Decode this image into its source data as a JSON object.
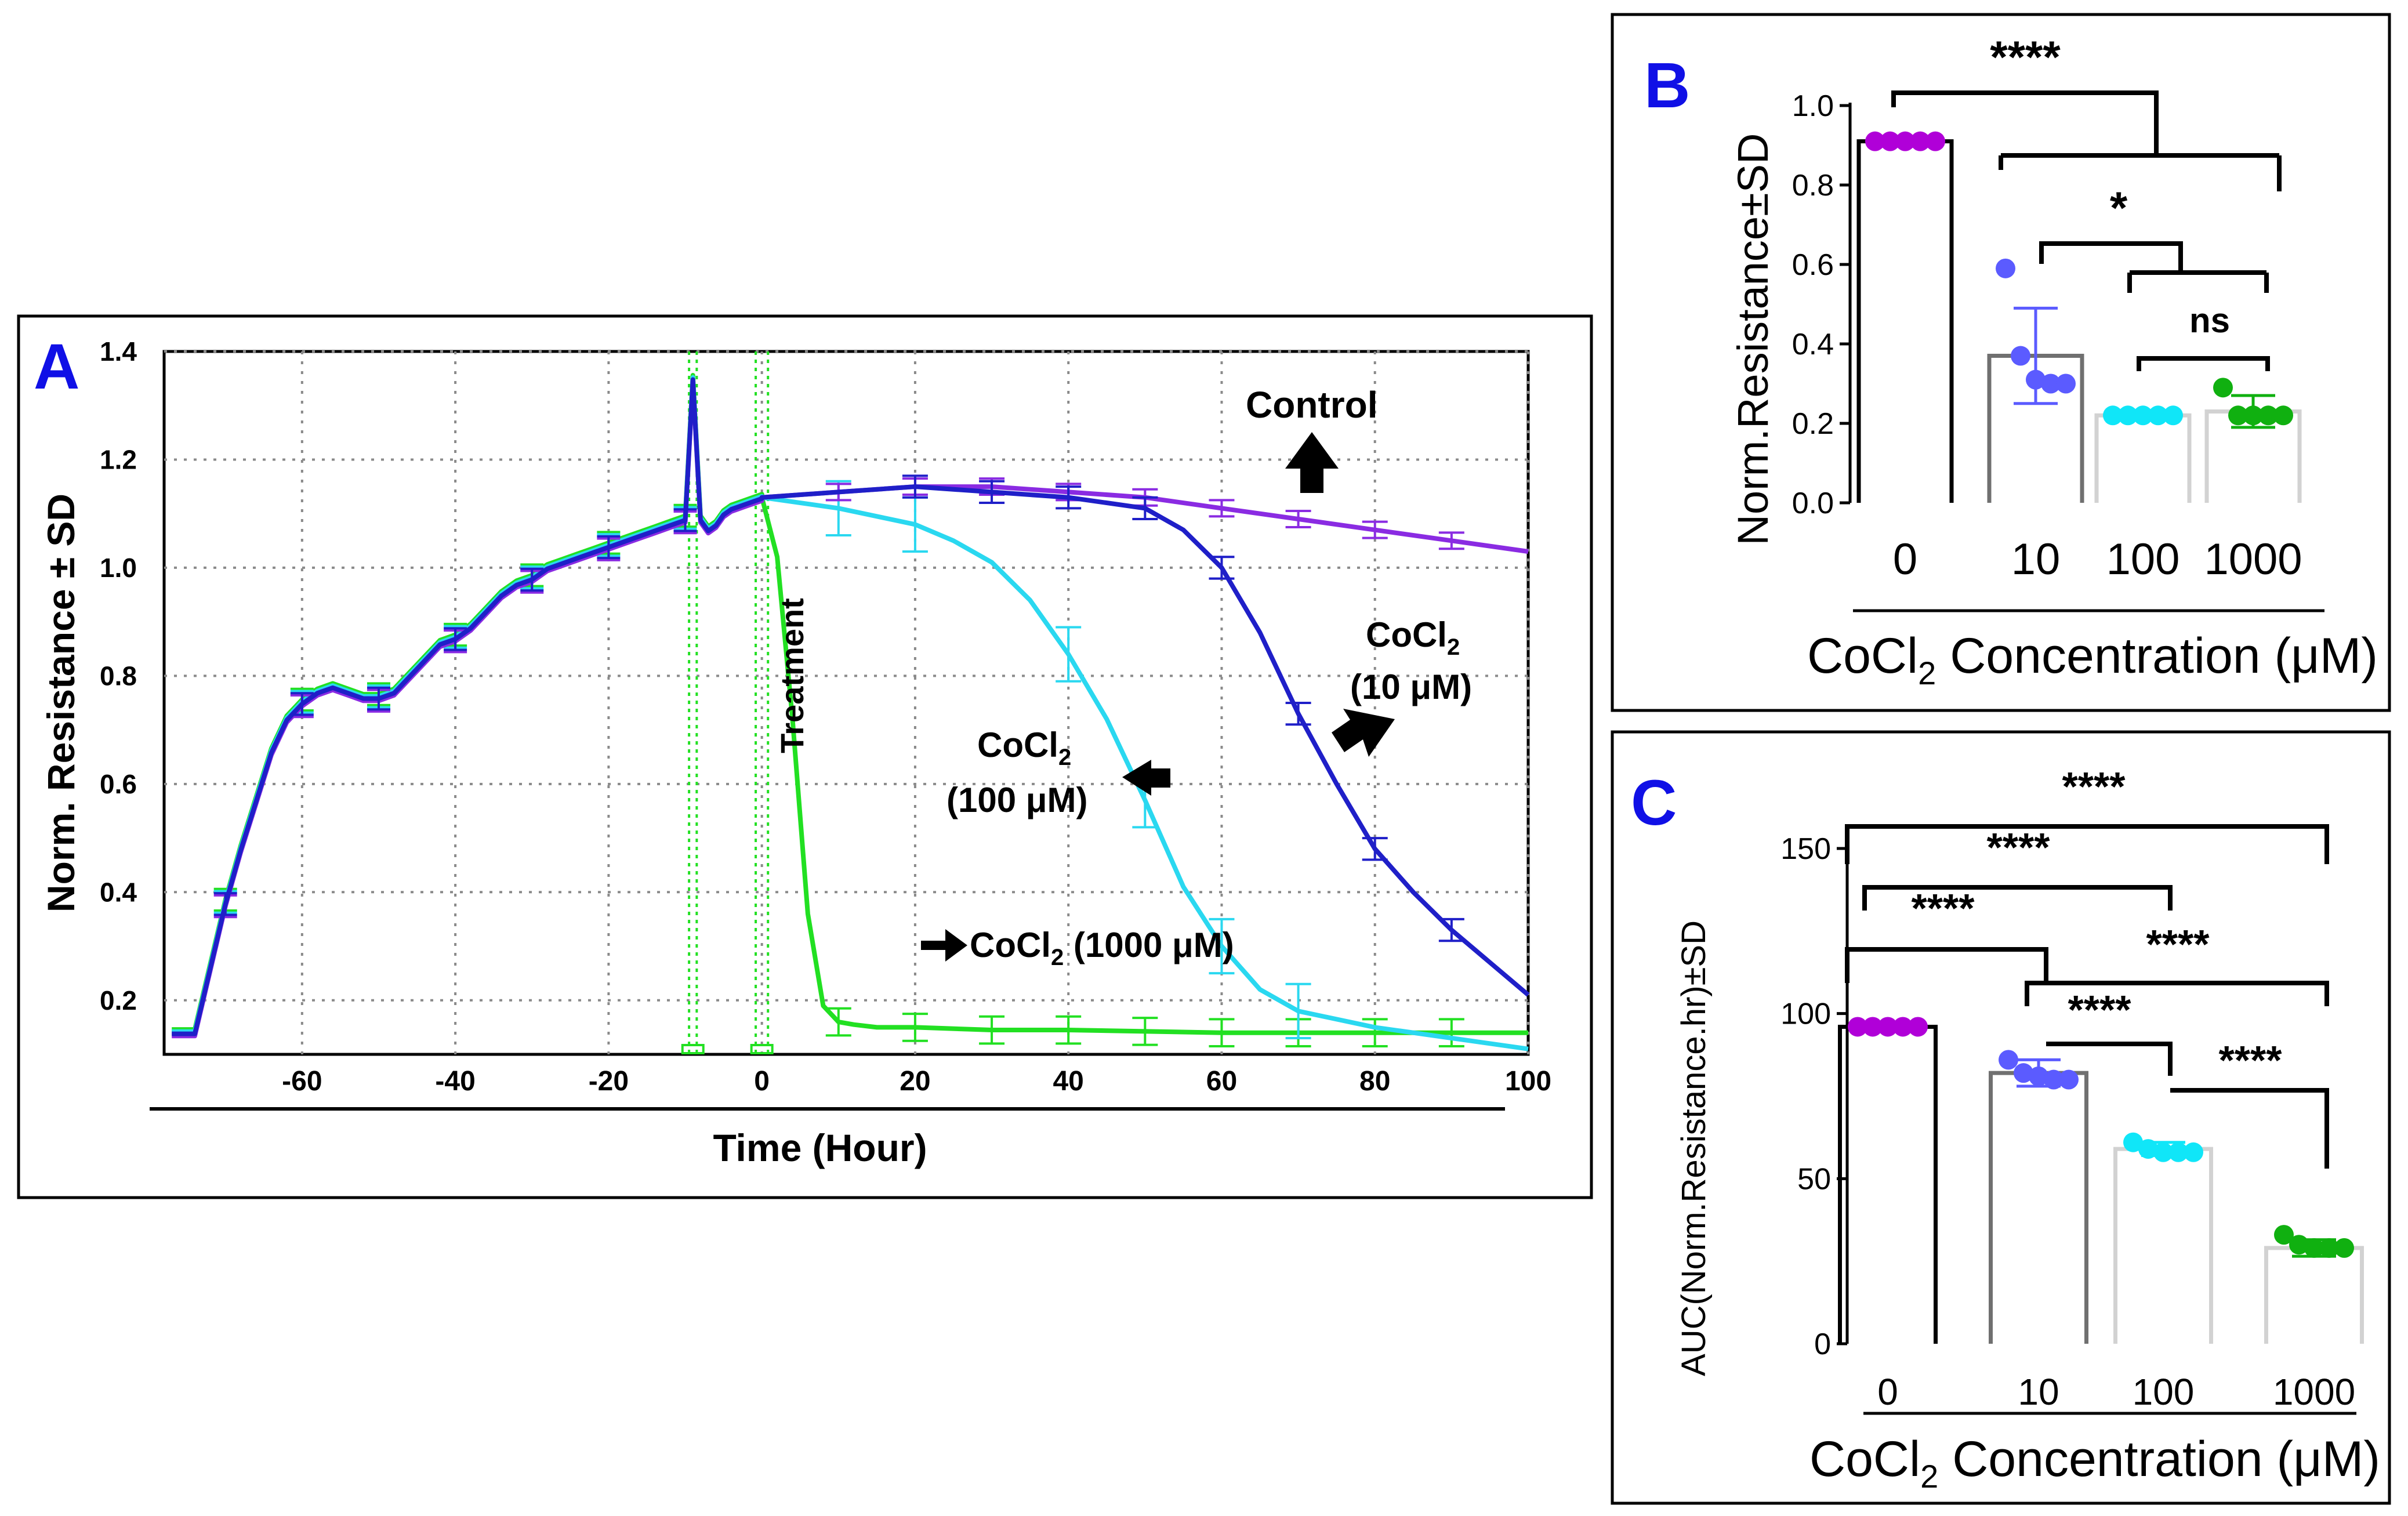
{
  "colors": {
    "control": "#8a2be2",
    "cocl2_10": "#1f1fc8",
    "cocl2_100": "#2ad8f0",
    "cocl2_1000": "#22e022",
    "panel_letter": "#1010e6",
    "bar_0": "#000000",
    "bar_10": "#707070",
    "bar_100": "#d2d2d2",
    "bar_1000": "#d2d2d2",
    "dot_0": "#b000d8",
    "dot_10": "#5b5bff",
    "dot_100": "#10e6f8",
    "dot_1000": "#10b010"
  },
  "chart_data": [
    {
      "panel": "A",
      "type": "line",
      "xlabel": "Time (Hour)",
      "ylabel": "Norm. Resistance ± SD",
      "xlim": [
        -78,
        100
      ],
      "ylim": [
        0.1,
        1.4
      ],
      "xticks": [
        -60,
        -40,
        -20,
        0,
        20,
        40,
        60,
        80,
        100
      ],
      "yticks": [
        0.2,
        0.4,
        0.6,
        0.8,
        1.0,
        1.2,
        1.4
      ],
      "ytick_labels": [
        "0.2",
        "0.4",
        "0.6",
        "0.8",
        "1.0",
        "1.2",
        "1.4"
      ],
      "xtick_labels": [
        "-60",
        "-40",
        "-20",
        "0",
        "20",
        "40",
        "60",
        "80",
        "100"
      ],
      "grid": true,
      "treatment_label": "Treatment",
      "annotations": {
        "control": "Control",
        "c10_line1": "CoCl",
        "c10_sub": "2",
        "c10_line2": "(10 μM)",
        "c100_line1": "CoCl",
        "c100_sub": "2",
        "c100_line2": "(100 μM)",
        "c1000_main": "CoCl",
        "c1000_sub": "2",
        "c1000_rest": " (1000 μM)"
      },
      "common_pre": {
        "x": [
          -77,
          -74,
          -72,
          -70,
          -68,
          -66,
          -64,
          -62,
          -60,
          -58,
          -56,
          -54,
          -52,
          -50,
          -48,
          -46,
          -44,
          -42,
          -40,
          -38,
          -36,
          -34,
          -32,
          -30,
          -28,
          -26,
          -24,
          -22,
          -20,
          -18,
          -16,
          -14,
          -12,
          -10,
          -9,
          -8,
          -7,
          -6,
          -5,
          -4,
          -2,
          0
        ],
        "y": [
          0.14,
          0.14,
          0.26,
          0.38,
          0.48,
          0.57,
          0.66,
          0.72,
          0.75,
          0.77,
          0.78,
          0.77,
          0.76,
          0.76,
          0.77,
          0.8,
          0.83,
          0.86,
          0.87,
          0.89,
          0.92,
          0.95,
          0.97,
          0.98,
          1.0,
          1.01,
          1.02,
          1.03,
          1.04,
          1.05,
          1.06,
          1.07,
          1.08,
          1.09,
          1.35,
          1.09,
          1.07,
          1.08,
          1.1,
          1.11,
          1.12,
          1.13
        ]
      },
      "series": [
        {
          "name": "Control",
          "color": "#8a2be2",
          "x": [
            0,
            10,
            20,
            30,
            40,
            50,
            60,
            70,
            80,
            90,
            100
          ],
          "y": [
            1.13,
            1.14,
            1.15,
            1.15,
            1.14,
            1.13,
            1.11,
            1.09,
            1.07,
            1.05,
            1.03
          ],
          "err_x": [
            10,
            20,
            30,
            40,
            50,
            60,
            70,
            80,
            90
          ],
          "err": 0.015
        },
        {
          "name": "CoCl2 (10 μM)",
          "color": "#1f1fc8",
          "x": [
            0,
            10,
            20,
            30,
            40,
            50,
            55,
            60,
            65,
            70,
            75,
            80,
            85,
            90,
            95,
            100
          ],
          "y": [
            1.13,
            1.14,
            1.15,
            1.14,
            1.13,
            1.11,
            1.07,
            1.0,
            0.88,
            0.73,
            0.6,
            0.48,
            0.4,
            0.33,
            0.27,
            0.21
          ],
          "err_x": [
            20,
            30,
            40,
            50,
            60,
            70,
            80,
            90
          ],
          "err": 0.02
        },
        {
          "name": "CoCl2 (100 μM)",
          "color": "#2ad8f0",
          "x": [
            0,
            10,
            20,
            25,
            30,
            35,
            40,
            45,
            50,
            55,
            60,
            65,
            70,
            80,
            90,
            100
          ],
          "y": [
            1.13,
            1.11,
            1.08,
            1.05,
            1.01,
            0.94,
            0.84,
            0.72,
            0.57,
            0.41,
            0.3,
            0.22,
            0.18,
            0.15,
            0.13,
            0.11
          ],
          "err_x": [
            10,
            20,
            40,
            50,
            60,
            70
          ],
          "err": 0.05
        },
        {
          "name": "CoCl2 (1000 μM)",
          "color": "#22e022",
          "x": [
            0,
            2,
            4,
            6,
            8,
            10,
            12,
            15,
            20,
            30,
            40,
            60,
            80,
            100
          ],
          "y": [
            1.13,
            1.02,
            0.72,
            0.36,
            0.19,
            0.16,
            0.155,
            0.15,
            0.15,
            0.145,
            0.145,
            0.14,
            0.14,
            0.14
          ],
          "err_x": [
            10,
            20,
            30,
            40,
            50,
            60,
            70,
            80,
            90
          ],
          "err": 0.025
        }
      ]
    },
    {
      "panel": "B",
      "type": "bar",
      "xlabel_pre": "CoCl",
      "xlabel_sub": "2",
      "xlabel_post": " Concentration (μM)",
      "ylabel": "Norm.Resistance±SD",
      "categories": [
        "0",
        "10",
        "100",
        "1000"
      ],
      "values": [
        0.91,
        0.37,
        0.22,
        0.23
      ],
      "sd": [
        0.01,
        0.12,
        0.01,
        0.04
      ],
      "points": [
        [
          0.91,
          0.91,
          0.91,
          0.91,
          0.91
        ],
        [
          0.59,
          0.37,
          0.31,
          0.3,
          0.3
        ],
        [
          0.22,
          0.22,
          0.22,
          0.22,
          0.22
        ],
        [
          0.29,
          0.22,
          0.22,
          0.22,
          0.22
        ]
      ],
      "ylim": [
        0,
        1.0
      ],
      "yticks": [
        0,
        0.2,
        0.4,
        0.6,
        0.8,
        1.0
      ],
      "ytick_labels": [
        "0.0",
        "0.2",
        "0.4",
        "0.6",
        "0.8",
        "1.0"
      ],
      "significance": [
        {
          "label": "****",
          "groups": "0 vs 10–1000"
        },
        {
          "label": "*",
          "groups": "10 vs 100–1000"
        },
        {
          "label": "ns",
          "groups": "100 vs 1000"
        }
      ]
    },
    {
      "panel": "C",
      "type": "bar",
      "xlabel_pre": "CoCl",
      "xlabel_sub": "2",
      "xlabel_post": " Concentration (μM)",
      "ylabel": "AUC(Norm.Resistance.hr)±SD",
      "categories": [
        "0",
        "10",
        "100",
        "1000"
      ],
      "values": [
        96,
        82,
        59,
        29
      ],
      "sd": [
        0.5,
        4,
        2,
        2.5
      ],
      "points": [
        [
          96,
          96,
          96,
          96,
          96
        ],
        [
          86,
          82,
          81,
          80,
          80
        ],
        [
          61,
          59,
          58,
          58,
          58
        ],
        [
          33,
          30,
          29,
          29,
          29
        ]
      ],
      "ylim": [
        0,
        150
      ],
      "yticks": [
        0,
        50,
        100,
        150
      ],
      "ytick_labels": [
        "0",
        "50",
        "100",
        "150"
      ],
      "significance": [
        {
          "label": "****",
          "groups": "0 vs 1000"
        },
        {
          "label": "****",
          "groups": "0 vs 100"
        },
        {
          "label": "****",
          "groups": "0 vs 10"
        },
        {
          "label": "****",
          "groups": "10 vs 1000"
        },
        {
          "label": "****",
          "groups": "10 vs 100"
        },
        {
          "label": "****",
          "groups": "100 vs 1000"
        }
      ]
    }
  ],
  "panels": {
    "a_letter": "A",
    "b_letter": "B",
    "c_letter": "C"
  }
}
